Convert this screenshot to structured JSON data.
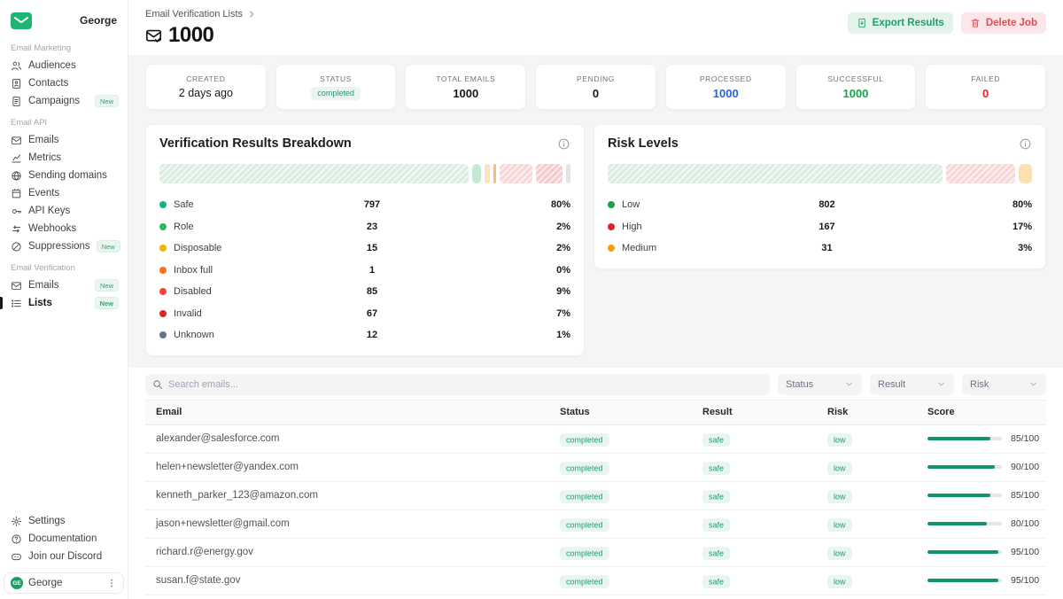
{
  "sidebar": {
    "workspace": "George",
    "logo_icon": "mail-logo-icon",
    "sections": [
      {
        "label": "Email Marketing",
        "items": [
          {
            "label": "Audiences",
            "icon": "audiences-icon"
          },
          {
            "label": "Contacts",
            "icon": "contacts-icon"
          },
          {
            "label": "Campaigns",
            "icon": "campaigns-icon",
            "badge": "New"
          }
        ]
      },
      {
        "label": "Email API",
        "items": [
          {
            "label": "Emails",
            "icon": "emails-icon"
          },
          {
            "label": "Metrics",
            "icon": "metrics-icon"
          },
          {
            "label": "Sending domains",
            "icon": "sending-domains-icon"
          },
          {
            "label": "Events",
            "icon": "events-icon"
          },
          {
            "label": "API Keys",
            "icon": "api-keys-icon"
          },
          {
            "label": "Webhooks",
            "icon": "webhooks-icon"
          },
          {
            "label": "Suppressions",
            "icon": "suppressions-icon",
            "badge": "New"
          }
        ]
      },
      {
        "label": "Email Verification",
        "items": [
          {
            "label": "Emails",
            "icon": "emails-icon",
            "badge": "New"
          },
          {
            "label": "Lists",
            "icon": "lists-icon",
            "badge": "New",
            "active": true
          }
        ]
      }
    ],
    "footer_items": [
      {
        "label": "Settings",
        "icon": "settings-icon"
      },
      {
        "label": "Documentation",
        "icon": "documentation-icon"
      },
      {
        "label": "Join our Discord",
        "icon": "discord-icon"
      }
    ],
    "user": {
      "name": "George",
      "initials": "GE",
      "menu_icon": "kebab-menu-icon"
    }
  },
  "header": {
    "breadcrumb": "Email Verification Lists",
    "breadcrumb_icon": "chevron-right-icon",
    "title": "1000",
    "title_icon": "mail-check-icon",
    "export_button": "Export Results",
    "export_icon": "export-icon",
    "delete_button": "Delete Job",
    "delete_icon": "trash-icon"
  },
  "stats": [
    {
      "label": "CREATED",
      "value": "2 days ago",
      "variant": "text"
    },
    {
      "label": "STATUS",
      "value": "completed",
      "variant": "badge"
    },
    {
      "label": "TOTAL EMAILS",
      "value": "1000",
      "variant": "bold"
    },
    {
      "label": "PENDING",
      "value": "0",
      "variant": "bold"
    },
    {
      "label": "PROCESSED",
      "value": "1000",
      "variant": "blue"
    },
    {
      "label": "SUCCESSFUL",
      "value": "1000",
      "variant": "green"
    },
    {
      "label": "FAILED",
      "value": "0",
      "variant": "red"
    }
  ],
  "panels": {
    "breakdown": {
      "title": "Verification Results Breakdown",
      "info_icon": "info-icon",
      "segments": [
        {
          "label": "Safe",
          "count": 797,
          "pct": "80%",
          "dot": "#14b380",
          "fill": "#daeee3",
          "hatch": true
        },
        {
          "label": "Role",
          "count": 23,
          "pct": "2%",
          "dot": "#2eb85c",
          "fill": "#c5e8d3",
          "hatch": false
        },
        {
          "label": "Disposable",
          "count": 15,
          "pct": "2%",
          "dot": "#eab308",
          "fill": "#fbe5bd",
          "hatch": false
        },
        {
          "label": "Inbox full",
          "count": 1,
          "pct": "0%",
          "dot": "#f97316",
          "fill": "#f6b98b",
          "hatch": false
        },
        {
          "label": "Disabled",
          "count": 85,
          "pct": "9%",
          "dot": "#ef4444",
          "fill": "#f8d7d8",
          "hatch": true
        },
        {
          "label": "Invalid",
          "count": 67,
          "pct": "7%",
          "dot": "#dc2626",
          "fill": "#f5cdd1",
          "hatch": true
        },
        {
          "label": "Unknown",
          "count": 12,
          "pct": "1%",
          "dot": "#64748b",
          "fill": "#e4e4e7",
          "hatch": false
        }
      ]
    },
    "risk": {
      "title": "Risk Levels",
      "info_icon": "info-icon",
      "segments": [
        {
          "label": "Low",
          "count": 802,
          "pct": "80%",
          "dot": "#16a34a",
          "fill": "#daeee3",
          "hatch": true
        },
        {
          "label": "High",
          "count": 167,
          "pct": "17%",
          "dot": "#dc2626",
          "fill": "#f8d7d8",
          "hatch": true
        },
        {
          "label": "Medium",
          "count": 31,
          "pct": "3%",
          "dot": "#f59e0b",
          "fill": "#fbe0b2",
          "hatch": false
        }
      ]
    }
  },
  "chart_data": [
    {
      "type": "bar",
      "title": "Verification Results Breakdown",
      "categories": [
        "Safe",
        "Role",
        "Disposable",
        "Inbox full",
        "Disabled",
        "Invalid",
        "Unknown"
      ],
      "values": [
        797,
        23,
        15,
        1,
        85,
        67,
        12
      ],
      "percent_labels": [
        "80%",
        "2%",
        "2%",
        "0%",
        "9%",
        "7%",
        "1%"
      ]
    },
    {
      "type": "bar",
      "title": "Risk Levels",
      "categories": [
        "Low",
        "High",
        "Medium"
      ],
      "values": [
        802,
        167,
        31
      ],
      "percent_labels": [
        "80%",
        "17%",
        "3%"
      ]
    }
  ],
  "filters": {
    "search_placeholder": "Search emails...",
    "search_icon": "search-icon",
    "dropdowns": [
      "Status",
      "Result",
      "Risk"
    ]
  },
  "table": {
    "columns": [
      "Email",
      "Status",
      "Result",
      "Risk",
      "Score"
    ],
    "rows": [
      {
        "email": "alexander@salesforce.com",
        "status": "completed",
        "result": "safe",
        "risk": "low",
        "score": 85,
        "score_label": "85/100"
      },
      {
        "email": "helen+newsletter@yandex.com",
        "status": "completed",
        "result": "safe",
        "risk": "low",
        "score": 90,
        "score_label": "90/100"
      },
      {
        "email": "kenneth_parker_123@amazon.com",
        "status": "completed",
        "result": "safe",
        "risk": "low",
        "score": 85,
        "score_label": "85/100"
      },
      {
        "email": "jason+newsletter@gmail.com",
        "status": "completed",
        "result": "safe",
        "risk": "low",
        "score": 80,
        "score_label": "80/100"
      },
      {
        "email": "richard.r@energy.gov",
        "status": "completed",
        "result": "safe",
        "risk": "low",
        "score": 95,
        "score_label": "95/100"
      },
      {
        "email": "susan.f@state.gov",
        "status": "completed",
        "result": "safe",
        "risk": "low",
        "score": 95,
        "score_label": "95/100"
      }
    ]
  }
}
